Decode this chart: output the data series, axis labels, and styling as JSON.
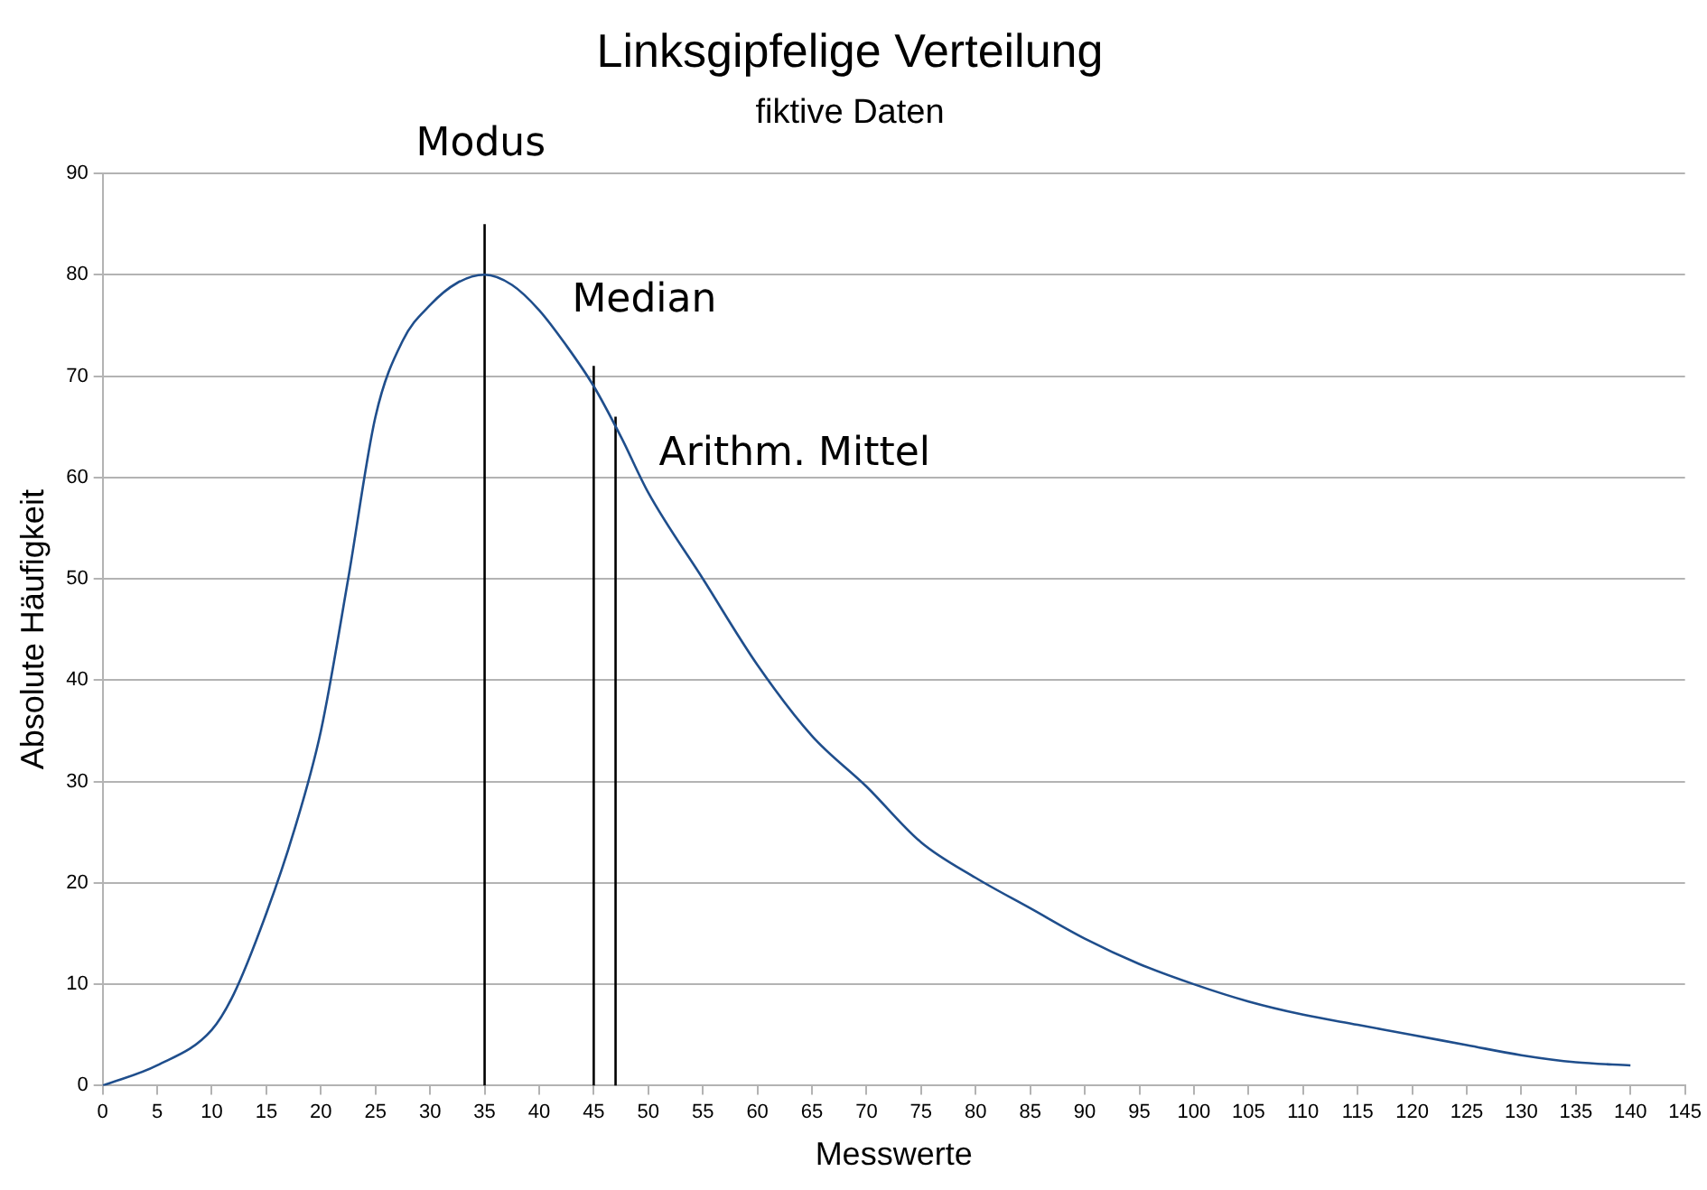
{
  "chart_data": {
    "type": "line",
    "title": "Linksgipfelige Verteilung",
    "subtitle": "fiktive Daten",
    "xlabel": "Messwerte",
    "ylabel": "Absolute Häufigkeit",
    "xlim": [
      0,
      145
    ],
    "xticks": [
      0,
      5,
      10,
      15,
      20,
      25,
      30,
      35,
      40,
      45,
      50,
      55,
      60,
      65,
      70,
      75,
      80,
      85,
      90,
      95,
      100,
      105,
      110,
      115,
      120,
      125,
      130,
      135,
      140,
      145
    ],
    "ylim": [
      0,
      90
    ],
    "yticks": [
      0,
      10,
      20,
      30,
      40,
      50,
      60,
      70,
      80,
      90
    ],
    "grid": "y",
    "legend": false,
    "marker": "none",
    "line_style": "solid",
    "series": [
      {
        "color": "#1f4e8c",
        "x": [
          0,
          5,
          10,
          12,
          15,
          17.5,
          20,
          22.5,
          25,
          27.5,
          30,
          32.5,
          35,
          37.5,
          40,
          42.5,
          45,
          47.5,
          50,
          55,
          60,
          65,
          70,
          75,
          80,
          85,
          90,
          95,
          100,
          105,
          110,
          115,
          120,
          125,
          130,
          135,
          140
        ],
        "values": [
          0,
          2,
          5.5,
          9,
          17,
          25,
          35,
          50,
          66,
          73.5,
          77,
          79.2,
          80,
          79,
          76.5,
          73,
          69,
          64,
          58.5,
          50,
          41.5,
          34.5,
          29.5,
          24,
          20.5,
          17.5,
          14.5,
          12,
          10,
          8.3,
          7,
          6,
          5,
          4,
          3,
          2.3,
          2
        ]
      },
      {
        "color": "#000000",
        "x": [
          35,
          35
        ],
        "values": [
          0,
          85
        ]
      },
      {
        "color": "#000000",
        "x": [
          45,
          45
        ],
        "values": [
          0,
          71
        ]
      },
      {
        "color": "#000000",
        "x": [
          47,
          47
        ],
        "values": [
          0,
          66
        ]
      }
    ],
    "annotations": [
      {
        "text": "Modus",
        "x": 35,
        "y": 85
      },
      {
        "text": "Median",
        "x": 45,
        "y": 71
      },
      {
        "text": "Arithm. Mittel",
        "x": 47,
        "y": 66
      }
    ]
  }
}
